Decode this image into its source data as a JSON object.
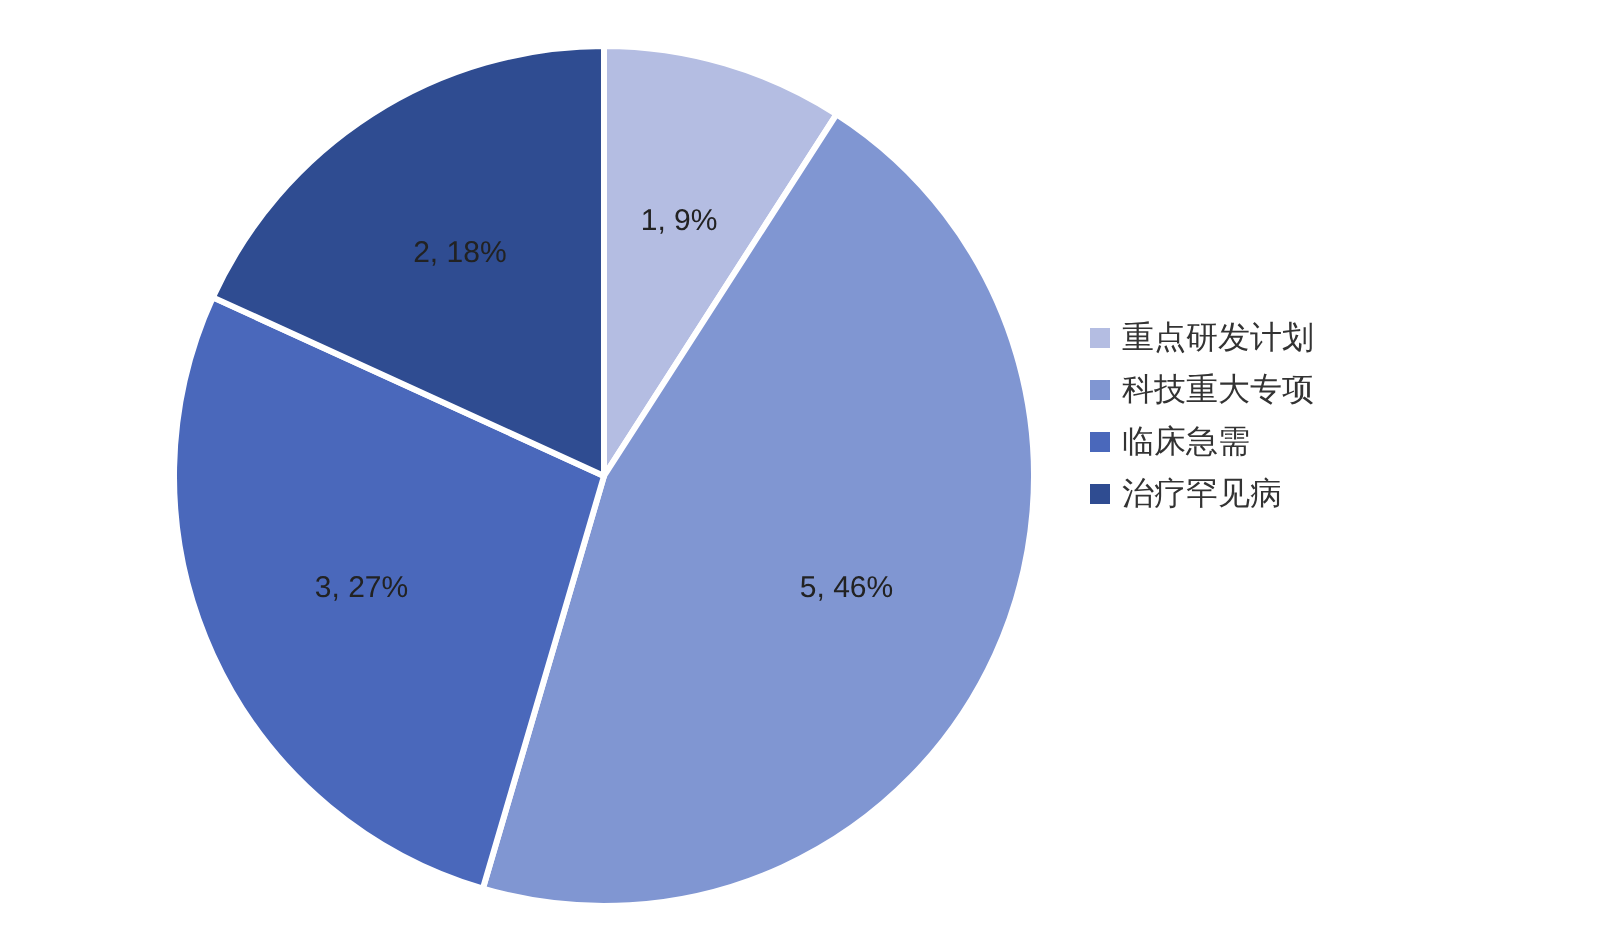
{
  "chart_data": {
    "type": "pie",
    "categories": [
      "重点研发计划",
      "科技重大专项",
      "临床急需",
      "治疗罕见病"
    ],
    "values": [
      1,
      5,
      3,
      2
    ],
    "colors": [
      "#b4bde2",
      "#8096d2",
      "#4a68bb",
      "#2f4c91"
    ],
    "value_labels": [
      "1, 9%",
      "5, 46%",
      "3, 27%",
      "2, 18%"
    ],
    "legend": "right"
  }
}
